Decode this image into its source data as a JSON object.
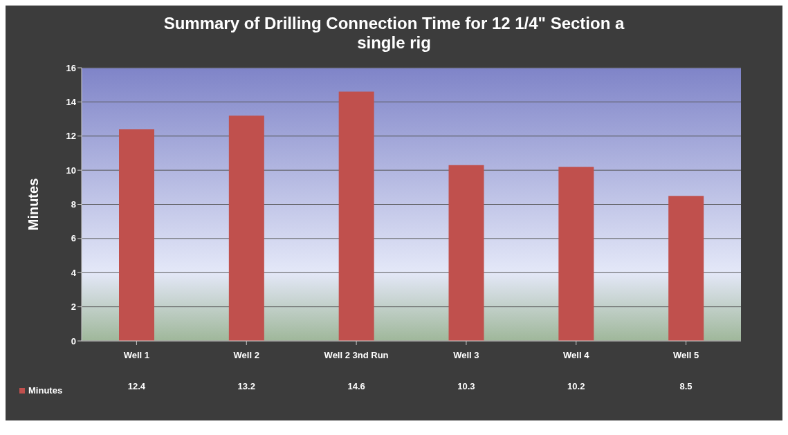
{
  "chart_data": {
    "type": "bar",
    "title": "Summary of Drilling Connection Time for 12 1/4\" Section a single rig",
    "ylabel": "Minutes",
    "categories": [
      "Well 1",
      "Well 2",
      "Well 2 3nd Run",
      "Well 3",
      "Well 4",
      "Well 5"
    ],
    "series": [
      {
        "name": "Minutes",
        "color": "#c0504d",
        "values": [
          12.4,
          13.2,
          14.6,
          10.3,
          10.2,
          8.5
        ]
      }
    ],
    "ylim": [
      0,
      16
    ],
    "yticks": [
      0,
      2,
      4,
      6,
      8,
      10,
      12,
      14,
      16
    ],
    "grid": "y",
    "legend": "bottom left",
    "data_labels": true
  }
}
